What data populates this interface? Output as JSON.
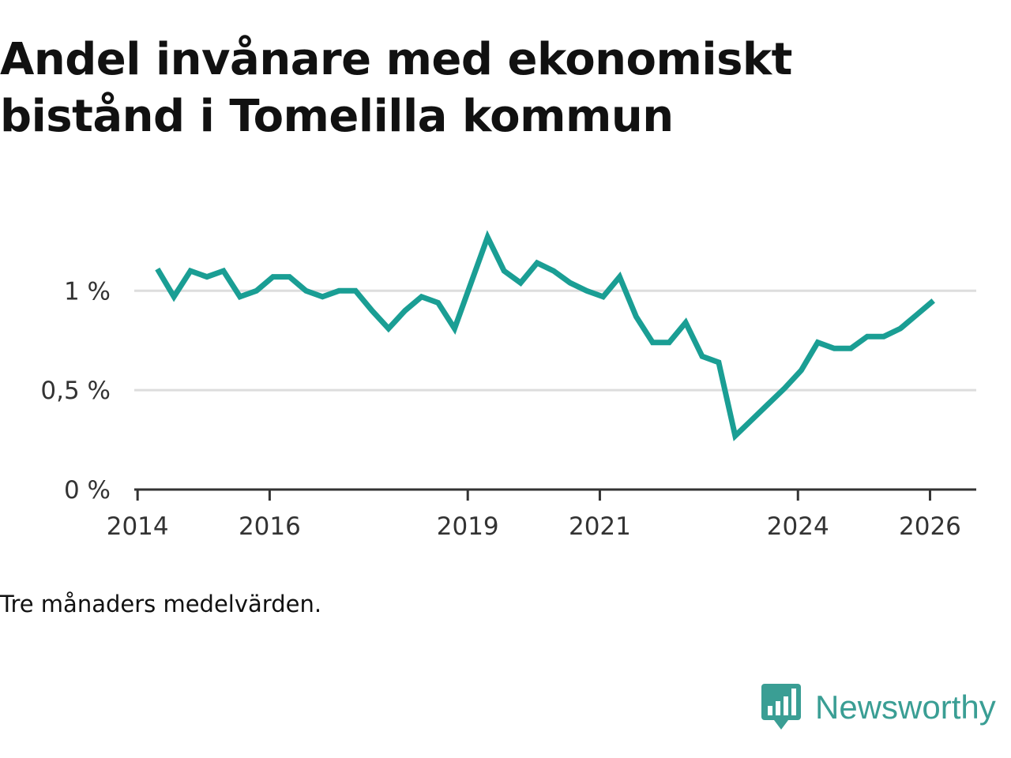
{
  "title": "Andel invånare med ekonomiskt bistånd i Tomelilla kommun",
  "footnote": "Tre månaders medelvärden.",
  "brand": {
    "name": "Newsworthy",
    "icon": "newsworthy-logo-icon",
    "color": "#3a9e94"
  },
  "chart_data": {
    "type": "line",
    "title": "Andel invånare med ekonomiskt bistånd i Tomelilla kommun",
    "xlabel": "",
    "ylabel": "",
    "xlim": [
      2013.95,
      2026.7
    ],
    "ylim": [
      0,
      1.43
    ],
    "y_ticks": [
      0,
      0.5,
      1
    ],
    "y_tick_labels": [
      "0 %",
      "0,5 %",
      "1 %"
    ],
    "x_ticks": [
      2014,
      2016,
      2019,
      2021,
      2024,
      2026
    ],
    "x_tick_labels": [
      "2014",
      "2016",
      "2019",
      "2021",
      "2024",
      "2026"
    ],
    "grid": true,
    "line_color": "#1a9e94",
    "series": [
      {
        "name": "Andel invånare med ekonomiskt bistånd",
        "x": [
          2014.3,
          2014.55,
          2014.8,
          2015.05,
          2015.3,
          2015.55,
          2015.8,
          2016.05,
          2016.3,
          2016.55,
          2016.8,
          2017.05,
          2017.3,
          2017.55,
          2017.8,
          2018.05,
          2018.3,
          2018.55,
          2018.8,
          2019.05,
          2019.3,
          2019.55,
          2019.8,
          2020.05,
          2020.3,
          2020.55,
          2020.8,
          2021.05,
          2021.3,
          2021.55,
          2021.8,
          2022.05,
          2022.3,
          2022.55,
          2022.8,
          2023.05,
          2023.3,
          2023.55,
          2023.8,
          2024.05,
          2024.3,
          2024.55,
          2024.8,
          2025.05,
          2025.3,
          2025.55,
          2025.8,
          2026.05
        ],
        "values": [
          1.11,
          0.97,
          1.1,
          1.07,
          1.1,
          0.97,
          1.0,
          1.07,
          1.07,
          1.0,
          0.97,
          1.0,
          1.0,
          0.9,
          0.81,
          0.9,
          0.97,
          0.94,
          0.81,
          1.04,
          1.27,
          1.1,
          1.04,
          1.14,
          1.1,
          1.04,
          1.0,
          0.97,
          1.07,
          0.87,
          0.74,
          0.74,
          0.84,
          0.67,
          0.64,
          0.27,
          0.35,
          0.43,
          0.51,
          0.6,
          0.74,
          0.71,
          0.71,
          0.77,
          0.77,
          0.81,
          0.88,
          0.95
        ]
      }
    ]
  }
}
